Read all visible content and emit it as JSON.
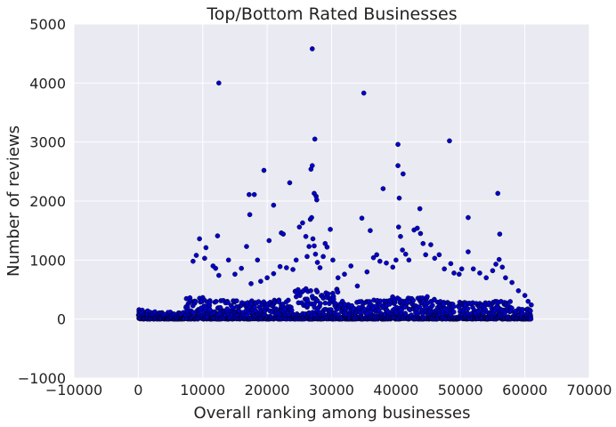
{
  "chart_data": {
    "type": "scatter",
    "title": "Top/Bottom Rated Businesses",
    "xlabel": "Overall ranking among businesses",
    "ylabel": "Number of reviews",
    "xlim": [
      -10000,
      70000
    ],
    "ylim": [
      -1000,
      5000
    ],
    "xticks": [
      -10000,
      0,
      10000,
      20000,
      30000,
      40000,
      50000,
      60000,
      70000
    ],
    "yticks": [
      -1000,
      0,
      1000,
      2000,
      3000,
      4000,
      5000
    ],
    "grid": true,
    "background_color": "#EAEAF2",
    "marker_color": "#0000CC",
    "points": [
      [
        12500,
        4000
      ],
      [
        27000,
        4580
      ],
      [
        35000,
        3830
      ],
      [
        40300,
        2960
      ],
      [
        48300,
        3020
      ],
      [
        27400,
        3050
      ],
      [
        19500,
        2520
      ],
      [
        23500,
        2310
      ],
      [
        26800,
        2540
      ],
      [
        27000,
        2600
      ],
      [
        27300,
        2130
      ],
      [
        27600,
        2080
      ],
      [
        27700,
        2020
      ],
      [
        17200,
        2110
      ],
      [
        18000,
        2110
      ],
      [
        38000,
        2210
      ],
      [
        40300,
        2600
      ],
      [
        41100,
        2460
      ],
      [
        40500,
        2050
      ],
      [
        43700,
        1870
      ],
      [
        55800,
        2130
      ],
      [
        51200,
        1720
      ],
      [
        56100,
        1440
      ],
      [
        21000,
        1930
      ],
      [
        17300,
        1770
      ],
      [
        22200,
        1460
      ],
      [
        22500,
        1440
      ],
      [
        20300,
        1330
      ],
      [
        16800,
        1230
      ],
      [
        12300,
        1410
      ],
      [
        9500,
        1360
      ],
      [
        10500,
        1210
      ],
      [
        9000,
        1080
      ],
      [
        10300,
        1030
      ],
      [
        8500,
        980
      ],
      [
        11600,
        900
      ],
      [
        12000,
        860
      ],
      [
        12500,
        740
      ],
      [
        14000,
        1000
      ],
      [
        15000,
        760
      ],
      [
        16000,
        860
      ],
      [
        18500,
        1000
      ],
      [
        17500,
        600
      ],
      [
        19000,
        640
      ],
      [
        20000,
        700
      ],
      [
        21000,
        770
      ],
      [
        22000,
        890
      ],
      [
        23000,
        870
      ],
      [
        24000,
        840
      ],
      [
        24500,
        1000
      ],
      [
        25000,
        1560
      ],
      [
        25500,
        1630
      ],
      [
        26000,
        1400
      ],
      [
        26500,
        1230
      ],
      [
        26200,
        1060
      ],
      [
        26700,
        1690
      ],
      [
        26900,
        1720
      ],
      [
        27100,
        1360
      ],
      [
        27300,
        1240
      ],
      [
        27500,
        1100
      ],
      [
        27800,
        960
      ],
      [
        28200,
        870
      ],
      [
        28700,
        1060
      ],
      [
        29000,
        1280
      ],
      [
        29300,
        1220
      ],
      [
        29800,
        1520
      ],
      [
        30200,
        1000
      ],
      [
        31000,
        700
      ],
      [
        32000,
        760
      ],
      [
        33000,
        900
      ],
      [
        34000,
        560
      ],
      [
        34700,
        1710
      ],
      [
        35500,
        800
      ],
      [
        36000,
        1500
      ],
      [
        36500,
        1040
      ],
      [
        37000,
        1090
      ],
      [
        37500,
        980
      ],
      [
        38500,
        950
      ],
      [
        39500,
        880
      ],
      [
        40000,
        1000
      ],
      [
        40400,
        1560
      ],
      [
        40700,
        1400
      ],
      [
        41000,
        1170
      ],
      [
        41500,
        1100
      ],
      [
        42000,
        1000
      ],
      [
        42800,
        1510
      ],
      [
        43300,
        1540
      ],
      [
        43800,
        1450
      ],
      [
        44200,
        1280
      ],
      [
        44600,
        1090
      ],
      [
        45400,
        1260
      ],
      [
        46000,
        1030
      ],
      [
        46700,
        1090
      ],
      [
        47500,
        850
      ],
      [
        48500,
        940
      ],
      [
        49000,
        780
      ],
      [
        49800,
        760
      ],
      [
        50200,
        850
      ],
      [
        51200,
        1140
      ],
      [
        52000,
        850
      ],
      [
        53000,
        780
      ],
      [
        54000,
        700
      ],
      [
        55000,
        820
      ],
      [
        55500,
        930
      ],
      [
        56000,
        1010
      ],
      [
        56500,
        880
      ],
      [
        57000,
        700
      ],
      [
        58000,
        620
      ],
      [
        59000,
        480
      ],
      [
        60000,
        400
      ],
      [
        60500,
        300
      ],
      [
        61000,
        240
      ]
    ],
    "dense_band": {
      "x_start": 0,
      "x_end": 61000
    }
  }
}
